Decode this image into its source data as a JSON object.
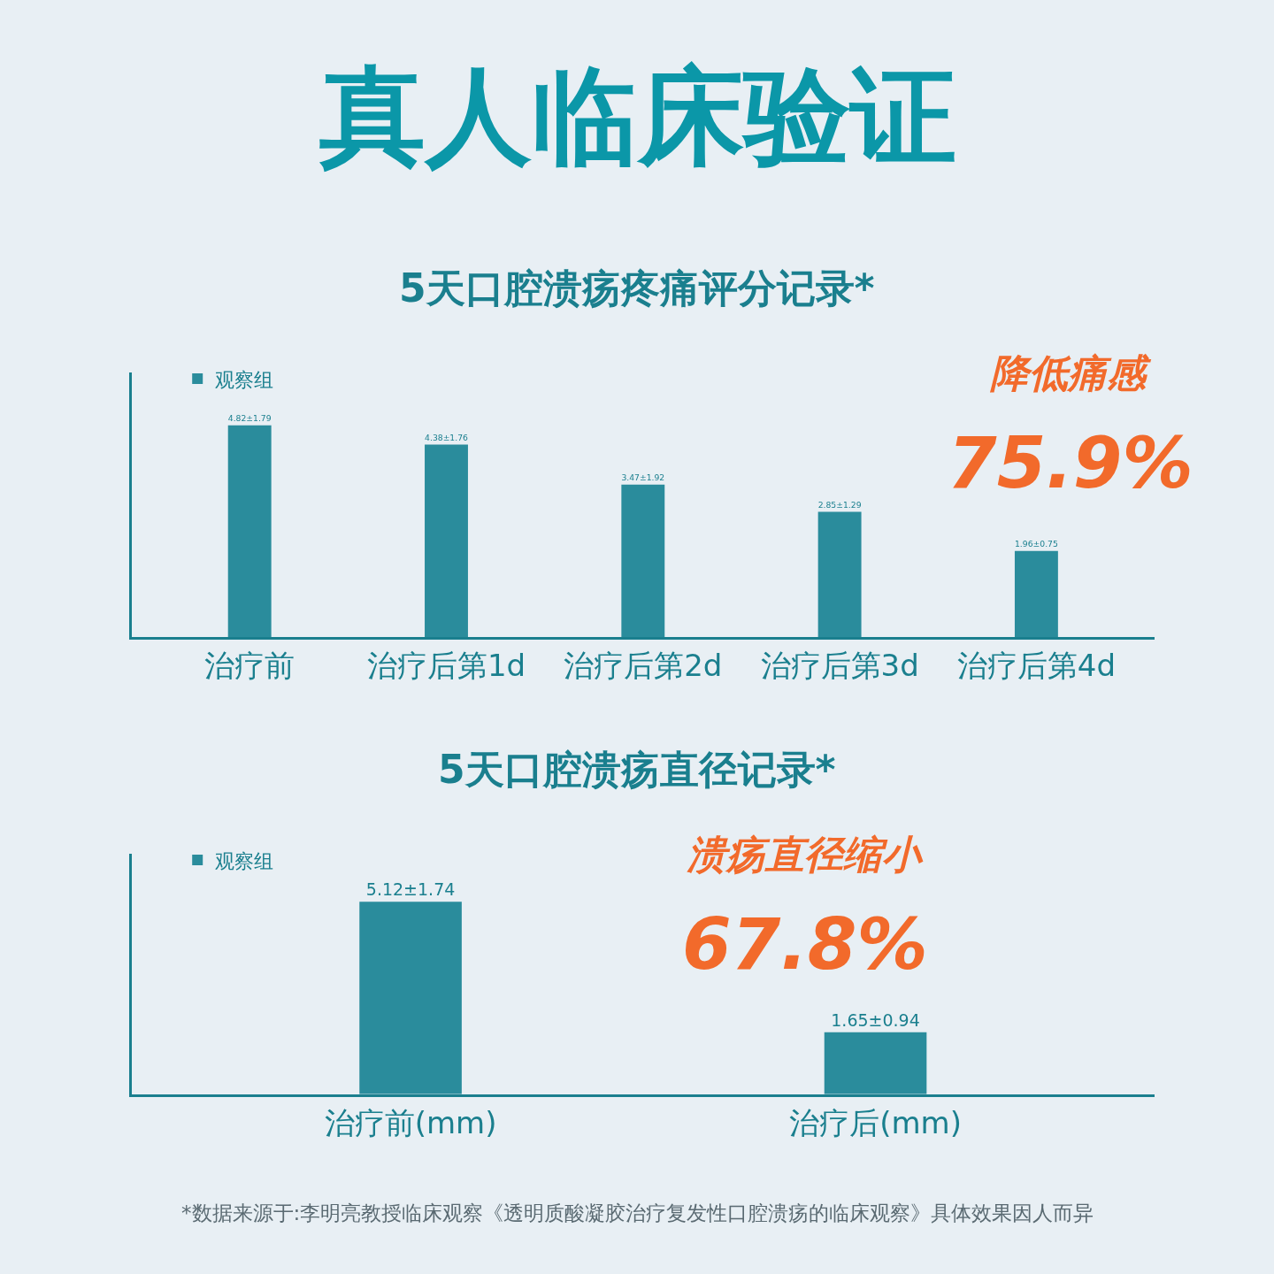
{
  "chart_data": [
    {
      "type": "bar",
      "title": "真人临床验证",
      "subtitle": "5天口腔溃疡疼痛评分记录*",
      "categories": [
        "治疗前",
        "治疗后第1d",
        "治疗后第2d",
        "治疗后第3d",
        "治疗后第4d"
      ],
      "series": [
        {
          "name": "观察组",
          "color": "#2a8c9c",
          "values": [
            4.82,
            4.38,
            3.47,
            2.85,
            1.96
          ],
          "value_labels": [
            "4.82±1.79",
            "4.38±1.76",
            "3.47±1.92",
            "2.85±1.29",
            "1.96±0.75"
          ]
        }
      ],
      "annotations": [
        "降低痛感",
        "75.9%"
      ],
      "legend": "top left",
      "tick_labels": "x",
      "grid": false
    },
    {
      "type": "bar",
      "subtitle": "5天口腔溃疡直径记录*",
      "categories": [
        "治疗前(mm)",
        "治疗后(mm)"
      ],
      "series": [
        {
          "name": "观察组",
          "color": "#2a8c9c",
          "values": [
            5.12,
            1.65
          ],
          "value_labels": [
            "5.12±1.74",
            "1.65±0.94"
          ]
        }
      ],
      "annotations": [
        "溃疡直径缩小",
        "67.8%",
        "*数据来源于:李明亮教授临床观察《透明质酸凝胶治疗复发性口腔溃疡的临床观察》具体效果因人而异"
      ],
      "legend": "top left",
      "tick_labels": "x",
      "grid": false
    }
  ]
}
